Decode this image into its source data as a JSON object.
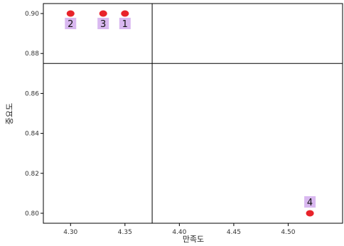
{
  "chart_data": {
    "type": "scatter",
    "title": "",
    "xlabel": "만족도",
    "ylabel": "중요도",
    "xlim": [
      4.275,
      4.55
    ],
    "ylim": [
      0.795,
      0.905
    ],
    "x_ticks": [
      4.3,
      4.35,
      4.4,
      4.45,
      4.5
    ],
    "x_tick_labels": [
      "4.30",
      "4.35",
      "4.40",
      "4.45",
      "4.50"
    ],
    "y_ticks": [
      0.8,
      0.82,
      0.84,
      0.86,
      0.88,
      0.9
    ],
    "y_tick_labels": [
      "0.80",
      "0.82",
      "0.84",
      "0.86",
      "0.88",
      "0.90"
    ],
    "grid": false,
    "reference_lines": {
      "x": 4.375,
      "y": 0.875
    },
    "point_color": "#e8232a",
    "label_bg_color": "#d9b8f0",
    "points": [
      {
        "label": "1",
        "x": 4.35,
        "y": 0.9
      },
      {
        "label": "2",
        "x": 4.3,
        "y": 0.9
      },
      {
        "label": "3",
        "x": 4.33,
        "y": 0.9
      },
      {
        "label": "4",
        "x": 4.52,
        "y": 0.8
      }
    ]
  }
}
